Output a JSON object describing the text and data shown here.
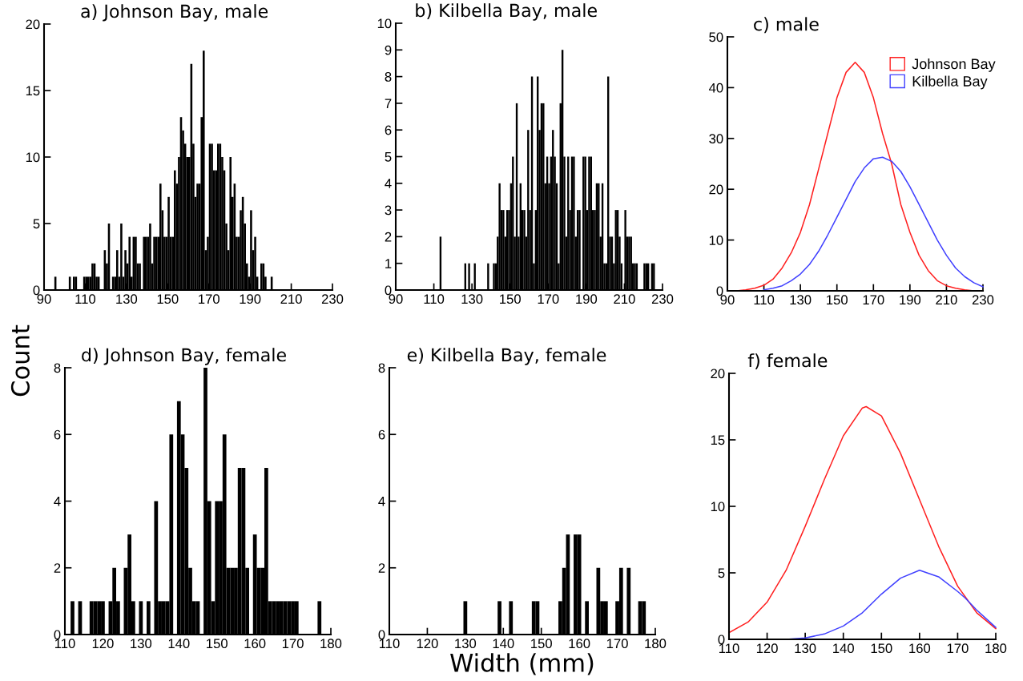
{
  "chart_data": [
    {
      "type": "histogram",
      "title": "a) Johnson Bay, male",
      "ylabel": "Count",
      "color": "#000000",
      "xlim": [
        90,
        230
      ],
      "ylim": [
        0,
        20
      ],
      "xticks": [
        90,
        110,
        130,
        150,
        170,
        190,
        210,
        230
      ],
      "yticks": [
        0,
        5,
        10,
        15,
        20
      ],
      "bins": [
        95,
        96,
        97,
        98,
        99,
        100,
        101,
        102,
        103,
        104,
        105,
        106,
        107,
        108,
        109,
        110,
        111,
        112,
        113,
        114,
        115,
        116,
        117,
        118,
        119,
        120,
        121,
        122,
        123,
        124,
        125,
        126,
        127,
        128,
        129,
        130,
        131,
        132,
        133,
        134,
        135,
        136,
        137,
        138,
        139,
        140,
        141,
        142,
        143,
        144,
        145,
        146,
        147,
        148,
        149,
        150,
        151,
        152,
        153,
        154,
        155,
        156,
        157,
        158,
        159,
        160,
        161,
        162,
        163,
        164,
        165,
        166,
        167,
        168,
        169,
        170,
        171,
        172,
        173,
        174,
        175,
        176,
        177,
        178,
        179,
        180,
        181,
        182,
        183,
        184,
        185,
        186,
        187,
        188,
        189,
        190,
        191,
        192,
        193,
        194,
        195,
        196,
        197,
        198,
        199,
        200,
        201
      ],
      "values": [
        1,
        0,
        0,
        0,
        0,
        0,
        0,
        1,
        0,
        1,
        1,
        0,
        0,
        0,
        1,
        1,
        1,
        1,
        2,
        2,
        1,
        1,
        0,
        0,
        3,
        2,
        5,
        0,
        1,
        1,
        3,
        1,
        5,
        1,
        3,
        2,
        4,
        1,
        4,
        4,
        2,
        2,
        0,
        4,
        4,
        4,
        5,
        2,
        4,
        4,
        4,
        8,
        6,
        4,
        4,
        7,
        4,
        4,
        9,
        8,
        10,
        13,
        12,
        11,
        10,
        10,
        17,
        11,
        7,
        8,
        8,
        13,
        18,
        3,
        4,
        11,
        11,
        9,
        9,
        11,
        11,
        10,
        9,
        5,
        3,
        10,
        7,
        8,
        4,
        4,
        6,
        7,
        5,
        2,
        1,
        6,
        3,
        4,
        1,
        0,
        2,
        2,
        1,
        0,
        0,
        1
      ]
    },
    {
      "type": "histogram",
      "title": "b) Kilbella Bay, male",
      "color": "#000000",
      "xlim": [
        90,
        230
      ],
      "ylim": [
        0,
        10
      ],
      "xticks": [
        90,
        110,
        130,
        150,
        170,
        190,
        210,
        230
      ],
      "yticks": [
        0,
        1,
        2,
        3,
        4,
        5,
        6,
        7,
        8,
        9,
        10
      ],
      "bins": [
        113,
        114,
        115,
        116,
        117,
        118,
        119,
        120,
        121,
        122,
        123,
        124,
        125,
        126,
        127,
        128,
        129,
        130,
        131,
        132,
        133,
        134,
        135,
        136,
        137,
        138,
        139,
        140,
        141,
        142,
        143,
        144,
        145,
        146,
        147,
        148,
        149,
        150,
        151,
        152,
        153,
        154,
        155,
        156,
        157,
        158,
        159,
        160,
        161,
        162,
        163,
        164,
        165,
        166,
        167,
        168,
        169,
        170,
        171,
        172,
        173,
        174,
        175,
        176,
        177,
        178,
        179,
        180,
        181,
        182,
        183,
        184,
        185,
        186,
        187,
        188,
        189,
        190,
        191,
        192,
        193,
        194,
        195,
        196,
        197,
        198,
        199,
        200,
        201,
        202,
        203,
        204,
        205,
        206,
        207,
        208,
        209,
        210,
        211,
        212,
        213,
        214,
        215,
        216,
        217,
        218,
        219,
        220,
        221,
        222,
        223,
        224,
        225,
        226
      ],
      "values": [
        2,
        0,
        0,
        0,
        0,
        0,
        0,
        0,
        0,
        0,
        0,
        0,
        0,
        1,
        0,
        1,
        0,
        0,
        1,
        0,
        0,
        0,
        0,
        0,
        0,
        1,
        0,
        0,
        1,
        1,
        2,
        4,
        3,
        3,
        2,
        3,
        3,
        4,
        5,
        2,
        7,
        2,
        4,
        3,
        3,
        2,
        6,
        3,
        8,
        1,
        3,
        8,
        6,
        7,
        7,
        4,
        5,
        4,
        5,
        6,
        5,
        4,
        1,
        7,
        9,
        5,
        2,
        5,
        3,
        5,
        5,
        2,
        3,
        3,
        0,
        5,
        5,
        3,
        5,
        5,
        3,
        3,
        4,
        4,
        2,
        4,
        1,
        1,
        8,
        2,
        2,
        1,
        3,
        3,
        2,
        1,
        0,
        3,
        2,
        2,
        2,
        1,
        1,
        1,
        0,
        0,
        0,
        1,
        1,
        1,
        0,
        1,
        1
      ]
    },
    {
      "type": "line",
      "title": "c) male",
      "xlim": [
        90,
        230
      ],
      "ylim": [
        0,
        50
      ],
      "xticks": [
        90,
        110,
        130,
        150,
        170,
        190,
        210,
        230
      ],
      "yticks": [
        0,
        10,
        20,
        30,
        40,
        50
      ],
      "legend": "top right",
      "line_style": "solid",
      "marker": "none",
      "x": [
        90,
        95,
        100,
        105,
        110,
        115,
        120,
        125,
        130,
        135,
        140,
        145,
        150,
        155,
        160,
        165,
        170,
        175,
        180,
        185,
        190,
        195,
        200,
        205,
        210,
        215,
        220,
        225,
        230
      ],
      "series": [
        {
          "name": "Johnson Bay",
          "color": "#ff2020",
          "values": [
            0,
            0,
            0.2,
            0.5,
            1.1,
            2.3,
            4.5,
            7.5,
            11.5,
            17,
            24,
            31,
            38,
            43,
            45,
            43,
            38,
            31,
            25,
            17,
            11.5,
            7,
            4,
            2,
            1,
            0.5,
            0.2,
            0,
            0
          ]
        },
        {
          "name": "Kilbella Bay",
          "color": "#4040ff",
          "x": [
            110,
            115,
            120,
            125,
            130,
            135,
            140,
            145,
            150,
            155,
            160,
            165,
            170,
            175,
            180,
            185,
            190,
            195,
            200,
            205,
            210,
            215,
            220,
            225,
            230
          ],
          "values": [
            0.2,
            0.5,
            1,
            2,
            3.3,
            5.2,
            7.8,
            11,
            14.5,
            18,
            21.5,
            24.2,
            26,
            26.3,
            25.5,
            23.5,
            20.5,
            17,
            13.5,
            10,
            7,
            4.5,
            2.8,
            1.6,
            0.8
          ]
        }
      ]
    },
    {
      "type": "histogram",
      "title": "d) Johnson Bay, female",
      "color": "#000000",
      "xlim": [
        110,
        180
      ],
      "ylim": [
        0,
        8
      ],
      "xticks": [
        110,
        120,
        130,
        140,
        150,
        160,
        170,
        180
      ],
      "yticks": [
        0,
        2,
        4,
        6,
        8
      ],
      "bins": [
        111.5,
        112.5,
        113.5,
        114.5,
        115.5,
        116.5,
        117.5,
        118.5,
        119.5,
        120.5,
        121.5,
        122.5,
        123.5,
        124.5,
        125.5,
        126.5,
        127.5,
        128.5,
        129.5,
        130.5,
        131.5,
        132.5,
        133.5,
        134.5,
        135.5,
        136.5,
        137.5,
        138.5,
        139.5,
        140.5,
        141.5,
        142.5,
        143.5,
        144.5,
        145.5,
        146.5,
        147.5,
        148.5,
        149.5,
        150.5,
        151.5,
        152.5,
        153.5,
        154.5,
        155.5,
        156.5,
        157.5,
        158.5,
        159.5,
        160.5,
        161.5,
        162.5,
        163.5,
        164.5,
        165.5,
        166.5,
        167.5,
        168.5,
        169.5,
        170.5,
        171.5,
        172.5,
        173.5,
        174.5,
        175.5,
        176.5,
        177.5
      ],
      "values": [
        1,
        0,
        1,
        0,
        0,
        1,
        1,
        1,
        1,
        0,
        1,
        2,
        1,
        0,
        2,
        3,
        1,
        0,
        1,
        0,
        1,
        0,
        4,
        1,
        1,
        1,
        6,
        0,
        7,
        6,
        5,
        2,
        1,
        1,
        0,
        8,
        4,
        1,
        4,
        4,
        6,
        2,
        2,
        2,
        5,
        5,
        2,
        0,
        3,
        2,
        2,
        5,
        1,
        1,
        1,
        1,
        1,
        1,
        1,
        1,
        0,
        0,
        0,
        0,
        0,
        1
      ]
    },
    {
      "type": "histogram",
      "title": "e) Kilbella Bay, female",
      "xlabel": "Width (mm)",
      "color": "#000000",
      "xlim": [
        110,
        180
      ],
      "ylim": [
        0,
        8
      ],
      "xticks": [
        110,
        120,
        130,
        140,
        150,
        160,
        170,
        180
      ],
      "yticks": [
        0,
        2,
        4,
        6,
        8
      ],
      "bins": [
        129.5,
        130.5,
        131.5,
        132.5,
        133.5,
        134.5,
        135.5,
        136.5,
        137.5,
        138.5,
        139.5,
        140.5,
        141.5,
        142.5,
        143.5,
        144.5,
        145.5,
        146.5,
        147.5,
        148.5,
        149.5,
        150.5,
        151.5,
        152.5,
        153.5,
        154.5,
        155.5,
        156.5,
        157.5,
        158.5,
        159.5,
        160.5,
        161.5,
        162.5,
        163.5,
        164.5,
        165.5,
        166.5,
        167.5,
        168.5,
        169.5,
        170.5,
        171.5,
        172.5,
        173.5,
        174.5,
        175.5,
        176.5,
        177.5
      ],
      "values": [
        1,
        0,
        0,
        0,
        0,
        0,
        0,
        0,
        0,
        1,
        0,
        0,
        1,
        0,
        0,
        0,
        0,
        0,
        1,
        1,
        0,
        0,
        0,
        0,
        0,
        1,
        2,
        3,
        0,
        3,
        3,
        0,
        1,
        0,
        0,
        2,
        1,
        1,
        0,
        0,
        1,
        2,
        0,
        2,
        0,
        0,
        1,
        1
      ]
    },
    {
      "type": "line",
      "title": "f) female",
      "xlim": [
        110,
        180
      ],
      "ylim": [
        0,
        20
      ],
      "xticks": [
        110,
        120,
        130,
        140,
        150,
        160,
        170,
        180
      ],
      "yticks": [
        0,
        5,
        10,
        15,
        20
      ],
      "line_style": "solid",
      "marker": "none",
      "series": [
        {
          "color": "#ff2020",
          "x": [
            110,
            115,
            120,
            125,
            130,
            135,
            140,
            145,
            146,
            150,
            155,
            160,
            165,
            170,
            175,
            180
          ],
          "values": [
            0.5,
            1.3,
            2.8,
            5.2,
            8.5,
            12,
            15.3,
            17.4,
            17.5,
            16.8,
            14,
            10.5,
            7,
            4,
            2,
            0.8
          ]
        },
        {
          "color": "#4040ff",
          "x": [
            110,
            120,
            125,
            130,
            135,
            140,
            145,
            150,
            155,
            160,
            165,
            170,
            172,
            175,
            180
          ],
          "values": [
            0,
            0,
            0,
            0.1,
            0.4,
            1,
            2,
            3.4,
            4.6,
            5.2,
            4.7,
            3.6,
            3.1,
            2.2,
            0.9
          ]
        }
      ]
    }
  ]
}
